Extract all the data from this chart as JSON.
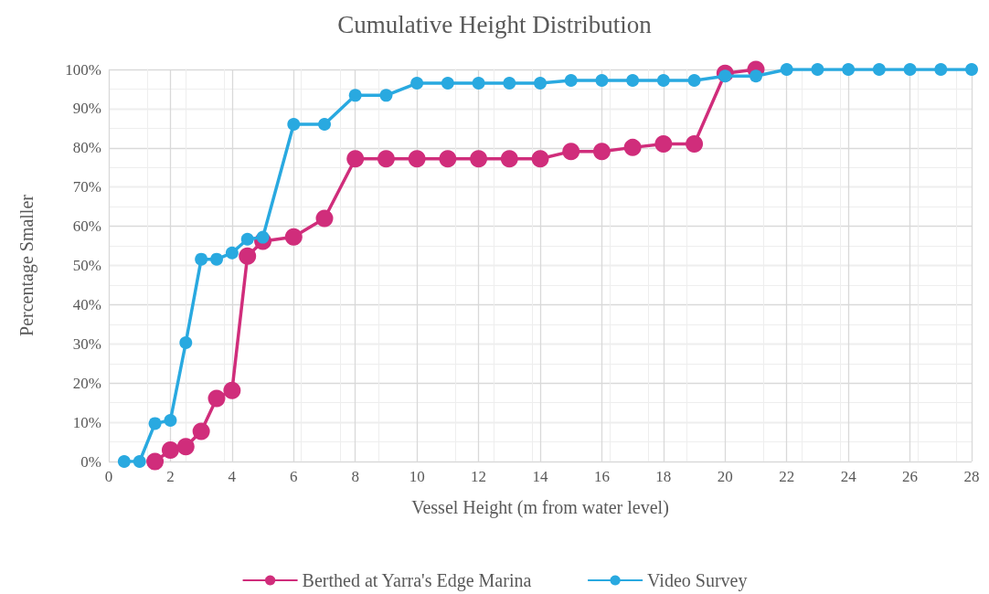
{
  "chart_data": {
    "type": "line",
    "title": "Cumulative Height Distribution",
    "xlabel": "Vessel Height (m from water level)",
    "ylabel": "Percentage Smaller",
    "series": [
      {
        "name": "Berthed at Yarra's Edge Marina",
        "color": "#d02d7b",
        "x": [
          1.5,
          2,
          2.5,
          3,
          3.5,
          4,
          4.5,
          5,
          6,
          7,
          8,
          9,
          10,
          11,
          12,
          13,
          14,
          15,
          16,
          17,
          18,
          19,
          20,
          21
        ],
        "values": [
          0,
          2.9,
          3.8,
          7.7,
          16.1,
          18.1,
          52.4,
          56.2,
          57.3,
          62,
          77.2,
          77.2,
          77.2,
          77.2,
          77.2,
          77.2,
          77.2,
          79.1,
          79.1,
          80.1,
          81,
          81,
          99,
          100
        ]
      },
      {
        "name": "Video Survey",
        "color": "#29a9e0",
        "x": [
          0.5,
          1,
          1.5,
          2,
          2.5,
          3,
          3.5,
          4,
          4.5,
          5,
          6,
          7,
          8,
          9,
          10,
          11,
          12,
          13,
          14,
          15,
          16,
          17,
          18,
          19,
          20,
          21,
          22,
          23,
          24,
          25,
          26,
          27,
          28
        ],
        "values": [
          0,
          0,
          9.7,
          10.5,
          30.3,
          51.6,
          51.6,
          53.2,
          56.7,
          57.2,
          86,
          86,
          93.4,
          93.4,
          96.5,
          96.5,
          96.5,
          96.5,
          96.5,
          97.2,
          97.2,
          97.2,
          97.2,
          97.2,
          98.3,
          98.3,
          100,
          100,
          100,
          100,
          100,
          100,
          100
        ]
      }
    ],
    "xlim": [
      0,
      28
    ],
    "xticks": [
      0,
      2,
      4,
      6,
      8,
      10,
      12,
      14,
      16,
      18,
      20,
      22,
      24,
      26,
      28
    ],
    "ylim": [
      0,
      100
    ],
    "yticks": [
      {
        "value": 0,
        "label": "0%"
      },
      {
        "value": 10,
        "label": "10%"
      },
      {
        "value": 20,
        "label": "20%"
      },
      {
        "value": 30,
        "label": "30%"
      },
      {
        "value": 40,
        "label": "40%"
      },
      {
        "value": 50,
        "label": "50%"
      },
      {
        "value": 60,
        "label": "60%"
      },
      {
        "value": 70,
        "label": "70%"
      },
      {
        "value": 80,
        "label": "80%"
      },
      {
        "value": 90,
        "label": "90%"
      },
      {
        "value": 100,
        "label": "100%"
      }
    ],
    "grid": true,
    "legend": "bottom",
    "marker": "circle",
    "line_style": "solid"
  }
}
